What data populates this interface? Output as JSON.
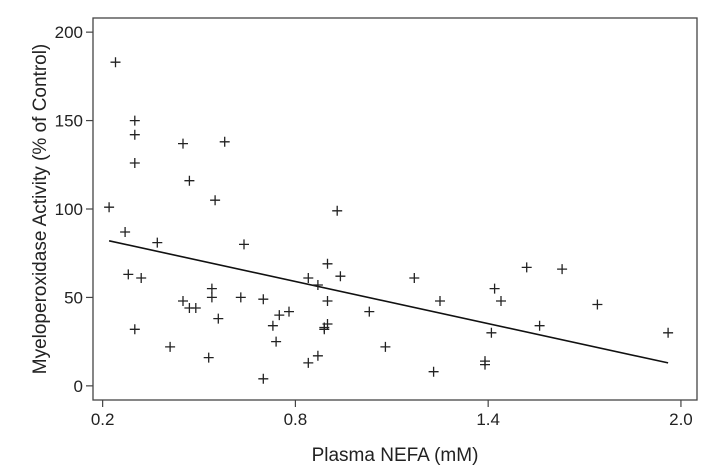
{
  "chart_data": {
    "type": "scatter",
    "xlabel": "Plasma NEFA (mM)",
    "ylabel": "Myeloperoxidase Activity (% of Control)",
    "xlim": [
      0.17,
      2.05
    ],
    "ylim": [
      -8,
      208
    ],
    "x_ticks": [
      0.2,
      0.8,
      1.4,
      2.0
    ],
    "x_tick_labels": [
      "0.2",
      "0.8",
      "1.4",
      "2.0"
    ],
    "y_ticks": [
      0,
      50,
      100,
      150,
      200
    ],
    "y_tick_labels": [
      "0",
      "50",
      "100",
      "150",
      "200"
    ],
    "grid": false,
    "legend": "none",
    "colors": {
      "points": "#222222",
      "line": "#111111",
      "frame": "#444444"
    },
    "points": [
      {
        "x": 0.24,
        "y": 183
      },
      {
        "x": 0.22,
        "y": 101
      },
      {
        "x": 0.27,
        "y": 87
      },
      {
        "x": 0.28,
        "y": 63
      },
      {
        "x": 0.3,
        "y": 150
      },
      {
        "x": 0.3,
        "y": 142
      },
      {
        "x": 0.3,
        "y": 126
      },
      {
        "x": 0.3,
        "y": 32
      },
      {
        "x": 0.32,
        "y": 61
      },
      {
        "x": 0.37,
        "y": 81
      },
      {
        "x": 0.41,
        "y": 22
      },
      {
        "x": 0.45,
        "y": 137
      },
      {
        "x": 0.45,
        "y": 48
      },
      {
        "x": 0.47,
        "y": 116
      },
      {
        "x": 0.47,
        "y": 44
      },
      {
        "x": 0.49,
        "y": 44
      },
      {
        "x": 0.53,
        "y": 16
      },
      {
        "x": 0.54,
        "y": 55
      },
      {
        "x": 0.54,
        "y": 50
      },
      {
        "x": 0.55,
        "y": 105
      },
      {
        "x": 0.56,
        "y": 38
      },
      {
        "x": 0.58,
        "y": 138
      },
      {
        "x": 0.63,
        "y": 50
      },
      {
        "x": 0.64,
        "y": 80
      },
      {
        "x": 0.7,
        "y": 4
      },
      {
        "x": 0.7,
        "y": 49
      },
      {
        "x": 0.73,
        "y": 34
      },
      {
        "x": 0.74,
        "y": 25
      },
      {
        "x": 0.75,
        "y": 40
      },
      {
        "x": 0.78,
        "y": 42
      },
      {
        "x": 0.84,
        "y": 13
      },
      {
        "x": 0.84,
        "y": 61
      },
      {
        "x": 0.87,
        "y": 57
      },
      {
        "x": 0.87,
        "y": 17
      },
      {
        "x": 0.89,
        "y": 33
      },
      {
        "x": 0.89,
        "y": 32
      },
      {
        "x": 0.9,
        "y": 69
      },
      {
        "x": 0.9,
        "y": 48
      },
      {
        "x": 0.9,
        "y": 35
      },
      {
        "x": 0.93,
        "y": 99
      },
      {
        "x": 0.94,
        "y": 62
      },
      {
        "x": 1.03,
        "y": 42
      },
      {
        "x": 1.08,
        "y": 22
      },
      {
        "x": 1.17,
        "y": 61
      },
      {
        "x": 1.23,
        "y": 8
      },
      {
        "x": 1.25,
        "y": 48
      },
      {
        "x": 1.39,
        "y": 14
      },
      {
        "x": 1.39,
        "y": 12
      },
      {
        "x": 1.41,
        "y": 30
      },
      {
        "x": 1.42,
        "y": 55
      },
      {
        "x": 1.44,
        "y": 48
      },
      {
        "x": 1.52,
        "y": 67
      },
      {
        "x": 1.56,
        "y": 34
      },
      {
        "x": 1.63,
        "y": 66
      },
      {
        "x": 1.74,
        "y": 46
      },
      {
        "x": 1.96,
        "y": 30
      }
    ],
    "fit_line": {
      "x": [
        0.22,
        1.96
      ],
      "y": [
        82,
        13
      ]
    }
  }
}
